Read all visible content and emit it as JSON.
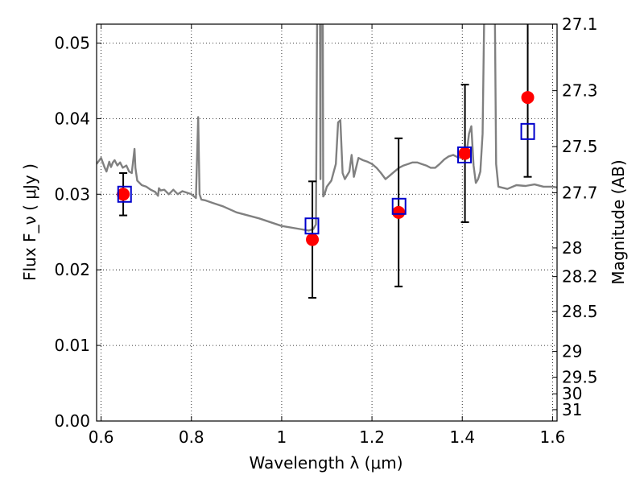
{
  "chart_data": {
    "type": "scatter",
    "xlabel": "Wavelength  λ (μm)",
    "ylabel": "Flux  F_ν  ( μJy )",
    "ylabel_right": "Magnitude (AB)",
    "xlim": [
      0.59,
      1.61
    ],
    "ylim": [
      0.0,
      0.0525
    ],
    "grid": true,
    "x_ticks": [
      0.6,
      0.8,
      1.0,
      1.2,
      1.4,
      1.6
    ],
    "x_tick_labels": [
      "0.6",
      "0.8",
      "1",
      "1.2",
      "1.4",
      "1.6"
    ],
    "y_ticks": [
      0.0,
      0.01,
      0.02,
      0.03,
      0.04,
      0.05
    ],
    "y_tick_labels": [
      "0.00",
      "0.01",
      "0.02",
      "0.03",
      "0.04",
      "0.05"
    ],
    "right_axis_ticks": [
      {
        "label": "27.1",
        "flux": 0.0525
      },
      {
        "label": "27.3",
        "flux": 0.0437
      },
      {
        "label": "27.5",
        "flux": 0.0363
      },
      {
        "label": "27.7",
        "flux": 0.0302
      },
      {
        "label": "28",
        "flux": 0.0229
      },
      {
        "label": "28.2",
        "flux": 0.0191
      },
      {
        "label": "28.5",
        "flux": 0.0145
      },
      {
        "label": "29",
        "flux": 0.0092
      },
      {
        "label": "29.5",
        "flux": 0.0058
      },
      {
        "label": "30",
        "flux": 0.0036
      },
      {
        "label": "31",
        "flux": 0.0015
      }
    ],
    "series": [
      {
        "kind": "line",
        "color": "#808080",
        "x": [
          0.59,
          0.6,
          0.608,
          0.612,
          0.618,
          0.622,
          0.626,
          0.63,
          0.636,
          0.642,
          0.648,
          0.656,
          0.662,
          0.668,
          0.674,
          0.676,
          0.68,
          0.69,
          0.7,
          0.71,
          0.72,
          0.726,
          0.728,
          0.732,
          0.74,
          0.75,
          0.76,
          0.77,
          0.78,
          0.79,
          0.8,
          0.81,
          0.815,
          0.818,
          0.822,
          0.83,
          0.85,
          0.87,
          0.9,
          0.95,
          1.0,
          1.04,
          1.06,
          1.07,
          1.076,
          1.082,
          1.084,
          1.086,
          1.088,
          1.09,
          1.092,
          1.095,
          1.1,
          1.11,
          1.12,
          1.125,
          1.13,
          1.135,
          1.14,
          1.15,
          1.155,
          1.16,
          1.17,
          1.18,
          1.19,
          1.2,
          1.21,
          1.22,
          1.23,
          1.24,
          1.25,
          1.26,
          1.27,
          1.28,
          1.29,
          1.3,
          1.31,
          1.32,
          1.33,
          1.34,
          1.35,
          1.36,
          1.37,
          1.38,
          1.39,
          1.4,
          1.41,
          1.415,
          1.42,
          1.425,
          1.43,
          1.435,
          1.44,
          1.445,
          1.45,
          1.455,
          1.46,
          1.465,
          1.47,
          1.475,
          1.48,
          1.5,
          1.52,
          1.54,
          1.56,
          1.58,
          1.6,
          1.61
        ],
        "values": [
          0.034,
          0.0348,
          0.0335,
          0.033,
          0.0343,
          0.0336,
          0.0342,
          0.0345,
          0.0338,
          0.0342,
          0.0335,
          0.0338,
          0.033,
          0.0328,
          0.036,
          0.0335,
          0.0318,
          0.0312,
          0.031,
          0.0306,
          0.0303,
          0.0298,
          0.0308,
          0.0305,
          0.0306,
          0.03,
          0.0306,
          0.03,
          0.0304,
          0.0302,
          0.03,
          0.0295,
          0.0402,
          0.03,
          0.0293,
          0.0292,
          0.0288,
          0.0284,
          0.0276,
          0.0268,
          0.0258,
          0.0254,
          0.0252,
          0.0254,
          0.026,
          0.09,
          0.07,
          0.032,
          0.09,
          0.08,
          0.0297,
          0.03,
          0.031,
          0.0318,
          0.034,
          0.0395,
          0.0398,
          0.0328,
          0.032,
          0.033,
          0.0352,
          0.0323,
          0.0348,
          0.0345,
          0.0343,
          0.034,
          0.0335,
          0.0328,
          0.032,
          0.0325,
          0.033,
          0.0335,
          0.0338,
          0.034,
          0.0342,
          0.0342,
          0.034,
          0.0338,
          0.0335,
          0.0335,
          0.034,
          0.0346,
          0.035,
          0.0352,
          0.0349,
          0.0348,
          0.0355,
          0.038,
          0.039,
          0.0338,
          0.0315,
          0.032,
          0.033,
          0.038,
          0.06,
          0.07,
          0.08,
          0.08,
          0.07,
          0.034,
          0.031,
          0.0307,
          0.0312,
          0.0311,
          0.0313,
          0.031,
          0.031,
          0.0309
        ]
      },
      {
        "kind": "errorbar",
        "color": "#ff0000",
        "x": [
          0.649,
          1.068,
          1.259,
          1.406,
          1.545
        ],
        "values": [
          0.03,
          0.024,
          0.0276,
          0.0354,
          0.0428
        ],
        "err_low": [
          0.0028,
          0.0077,
          0.0098,
          0.0091,
          0.0105
        ],
        "err_high": [
          0.0028,
          0.0077,
          0.0098,
          0.0091,
          0.0105
        ]
      },
      {
        "kind": "square",
        "color": "#0000cc",
        "x": [
          0.652,
          1.067,
          1.26,
          1.405,
          1.545
        ],
        "values": [
          0.03,
          0.0258,
          0.0284,
          0.0352,
          0.0383
        ]
      }
    ]
  }
}
